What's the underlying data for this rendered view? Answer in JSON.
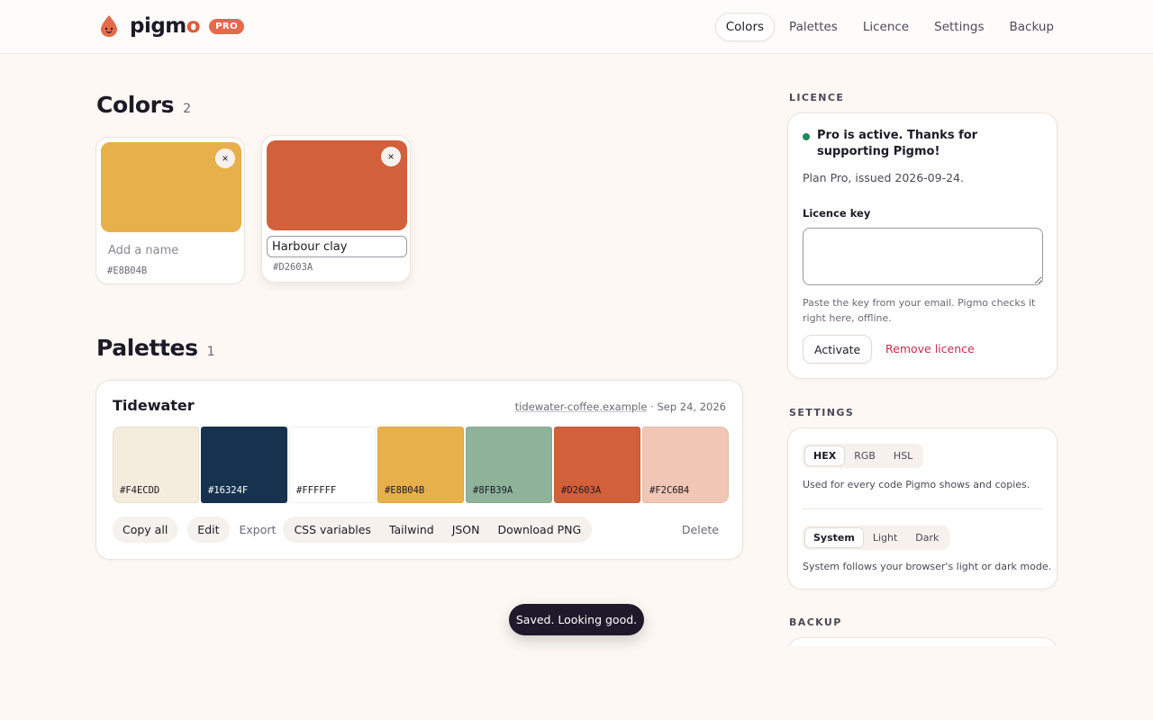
{
  "header": {
    "brand": "pigm",
    "brand_accent": "o",
    "badge": "PRO",
    "nav": [
      "Colors",
      "Palettes",
      "Licence",
      "Settings",
      "Backup"
    ],
    "active_nav": "Colors"
  },
  "colors_section": {
    "title": "Colors",
    "count": "2",
    "cards": [
      {
        "color": "#E8B04B",
        "name": "",
        "placeholder": "Add a name",
        "hex": "#E8B04B",
        "remove": "×"
      },
      {
        "color": "#D2603A",
        "name": "Harbour clay",
        "placeholder": "Add a name",
        "hex": "#D2603A",
        "remove": "×"
      }
    ]
  },
  "palettes_section": {
    "title": "Palettes",
    "count": "1",
    "palette": {
      "name": "Tidewater",
      "domain": "tidewater-coffee.example",
      "date": "Sep 24, 2026",
      "swatches": [
        {
          "hex": "#F4ECDD",
          "label_color": "#1c1a26"
        },
        {
          "hex": "#16324F",
          "label_color": "#ffffff"
        },
        {
          "hex": "#FFFFFF",
          "label_color": "#1c1a26"
        },
        {
          "hex": "#E8B04B",
          "label_color": "#1c1a26"
        },
        {
          "hex": "#8FB39A",
          "label_color": "#1c1a26"
        },
        {
          "hex": "#D2603A",
          "label_color": "#1c1a26"
        },
        {
          "hex": "#F2C6B4",
          "label_color": "#1c1a26"
        }
      ],
      "actions": {
        "copy_all": "Copy all",
        "edit": "Edit",
        "export_label": "Export",
        "export_options": [
          "CSS variables",
          "Tailwind",
          "JSON",
          "Download PNG"
        ],
        "delete": "Delete"
      }
    }
  },
  "toast": "Saved. Looking good.",
  "sidebar": {
    "licence": {
      "heading": "LICENCE",
      "status": "Pro is active. Thanks for supporting Pigmo!",
      "plan": "Plan Pro, issued 2026-09-24.",
      "key_label": "Licence key",
      "key_value": "",
      "help": "Paste the key from your email. Pigmo checks it right here, offline.",
      "activate": "Activate",
      "remove": "Remove licence"
    },
    "settings": {
      "heading": "SETTINGS",
      "format_options": [
        "HEX",
        "RGB",
        "HSL"
      ],
      "format_selected": "HEX",
      "format_help": "Used for every code Pigmo shows and copies.",
      "theme_options": [
        "System",
        "Light",
        "Dark"
      ],
      "theme_selected": "System",
      "theme_help": "System follows your browser's light or dark mode."
    },
    "backup": {
      "heading": "BACKUP"
    }
  },
  "colors": {
    "accent": "#E46A4B",
    "status_green": "#1E8A5A",
    "danger": "#C22D4D",
    "toast_bg": "#1E1A2B"
  }
}
